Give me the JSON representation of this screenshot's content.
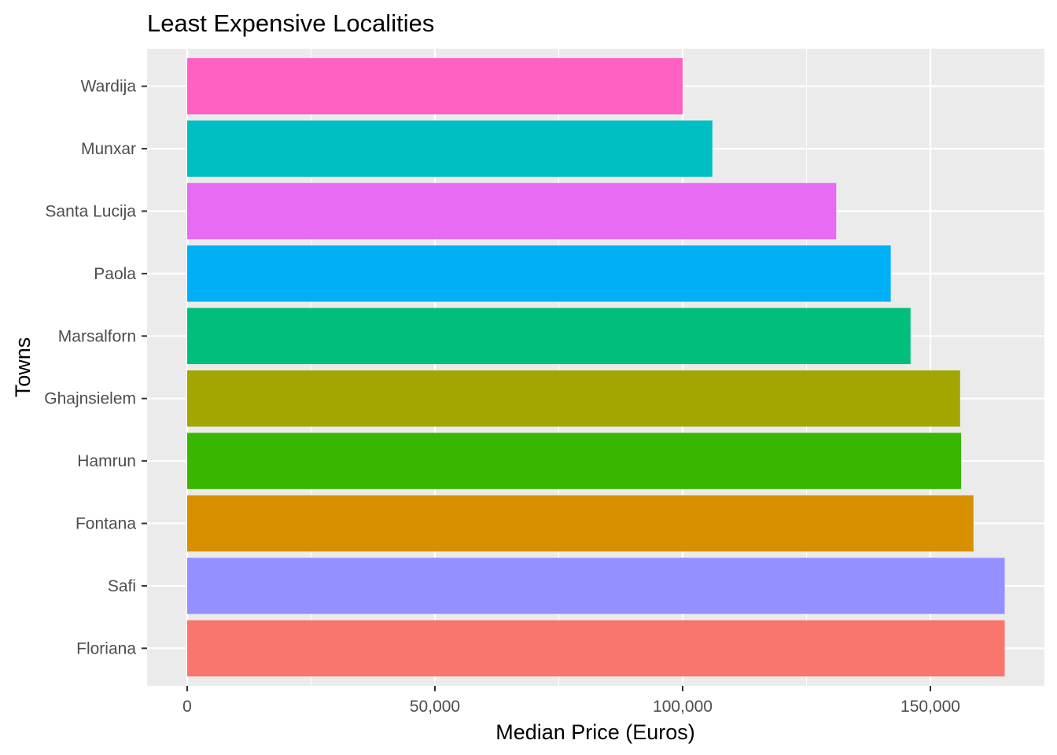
{
  "chart_data": {
    "type": "bar",
    "orientation": "horizontal",
    "title": "Least Expensive Localities",
    "xlabel": "Median Price (Euros)",
    "ylabel": "Towns",
    "xlim": [
      0,
      170000
    ],
    "x_ticks": [
      0,
      50000,
      100000,
      150000
    ],
    "x_tick_labels": [
      "0",
      "50,000",
      "100,000",
      "150,000"
    ],
    "grid": true,
    "legend": "none",
    "panel_background": "#EBEBEB",
    "grid_color": "#FFFFFF",
    "categories": [
      "Wardija",
      "Munxar",
      "Santa Lucija",
      "Paola",
      "Marsalforn",
      "Ghajnsielem",
      "Hamrun",
      "Fontana",
      "Safi",
      "Floriana"
    ],
    "values": [
      100000,
      106000,
      131000,
      142000,
      146000,
      156000,
      156200,
      158700,
      165000,
      165000
    ],
    "colors": [
      "#FF61C3",
      "#00BFC4",
      "#E76BF3",
      "#00B0F6",
      "#00BF7D",
      "#A3A500",
      "#39B600",
      "#D89000",
      "#9590FF",
      "#F8766D"
    ]
  }
}
